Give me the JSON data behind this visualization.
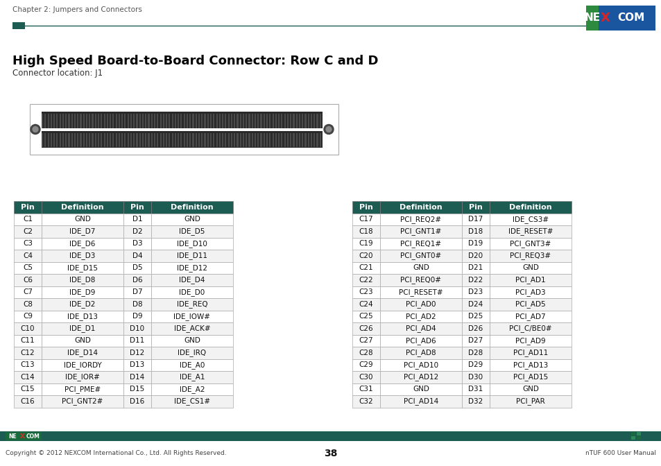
{
  "title": "High Speed Board-to-Board Connector: Row C and D",
  "subtitle": "Connector location: J1",
  "chapter": "Chapter 2: Jumpers and Connectors",
  "page_number": "38",
  "footer_left": "Copyright © 2012 NEXCOM International Co., Ltd. All Rights Reserved.",
  "footer_right": "nTUF 600 User Manual",
  "table1": {
    "headers": [
      "Pin",
      "Definition",
      "Pin",
      "Definition"
    ],
    "rows": [
      [
        "C1",
        "GND",
        "D1",
        "GND"
      ],
      [
        "C2",
        "IDE_D7",
        "D2",
        "IDE_D5"
      ],
      [
        "C3",
        "IDE_D6",
        "D3",
        "IDE_D10"
      ],
      [
        "C4",
        "IDE_D3",
        "D4",
        "IDE_D11"
      ],
      [
        "C5",
        "IDE_D15",
        "D5",
        "IDE_D12"
      ],
      [
        "C6",
        "IDE_D8",
        "D6",
        "IDE_D4"
      ],
      [
        "C7",
        "IDE_D9",
        "D7",
        "IDE_D0"
      ],
      [
        "C8",
        "IDE_D2",
        "D8",
        "IDE_REQ"
      ],
      [
        "C9",
        "IDE_D13",
        "D9",
        "IDE_IOW#"
      ],
      [
        "C10",
        "IDE_D1",
        "D10",
        "IDE_ACK#"
      ],
      [
        "C11",
        "GND",
        "D11",
        "GND"
      ],
      [
        "C12",
        "IDE_D14",
        "D12",
        "IDE_IRQ"
      ],
      [
        "C13",
        "IDE_IORDY",
        "D13",
        "IDE_A0"
      ],
      [
        "C14",
        "IDE_IOR#",
        "D14",
        "IDE_A1"
      ],
      [
        "C15",
        "PCI_PME#",
        "D15",
        "IDE_A2"
      ],
      [
        "C16",
        "PCI_GNT2#",
        "D16",
        "IDE_CS1#"
      ]
    ]
  },
  "table2": {
    "headers": [
      "Pin",
      "Definition",
      "Pin",
      "Definition"
    ],
    "rows": [
      [
        "C17",
        "PCI_REQ2#",
        "D17",
        "IDE_CS3#"
      ],
      [
        "C18",
        "PCI_GNT1#",
        "D18",
        "IDE_RESET#"
      ],
      [
        "C19",
        "PCI_REQ1#",
        "D19",
        "PCI_GNT3#"
      ],
      [
        "C20",
        "PCI_GNT0#",
        "D20",
        "PCI_REQ3#"
      ],
      [
        "C21",
        "GND",
        "D21",
        "GND"
      ],
      [
        "C22",
        "PCI_REQ0#",
        "D22",
        "PCI_AD1"
      ],
      [
        "C23",
        "PCI_RESET#",
        "D23",
        "PCI_AD3"
      ],
      [
        "C24",
        "PCI_AD0",
        "D24",
        "PCI_AD5"
      ],
      [
        "C25",
        "PCI_AD2",
        "D25",
        "PCI_AD7"
      ],
      [
        "C26",
        "PCI_AD4",
        "D26",
        "PCI_C/BE0#"
      ],
      [
        "C27",
        "PCI_AD6",
        "D27",
        "PCI_AD9"
      ],
      [
        "C28",
        "PCI_AD8",
        "D28",
        "PCI_AD11"
      ],
      [
        "C29",
        "PCI_AD10",
        "D29",
        "PCI_AD13"
      ],
      [
        "C30",
        "PCI_AD12",
        "D30",
        "PCI_AD15"
      ],
      [
        "C31",
        "GND",
        "D31",
        "GND"
      ],
      [
        "C32",
        "PCI_AD14",
        "D32",
        "PCI_PAR"
      ]
    ]
  },
  "header_bg": "#1c5c52",
  "row_bg_white": "#ffffff",
  "row_bg_gray": "#f2f2f2",
  "border_color": "#aaaaaa",
  "accent_color": "#1c5c52",
  "footer_bg": "#1c5c52",
  "nexcom_logo_bg": "#1a6b3c",
  "nexcom_blue": "#1a56a0"
}
